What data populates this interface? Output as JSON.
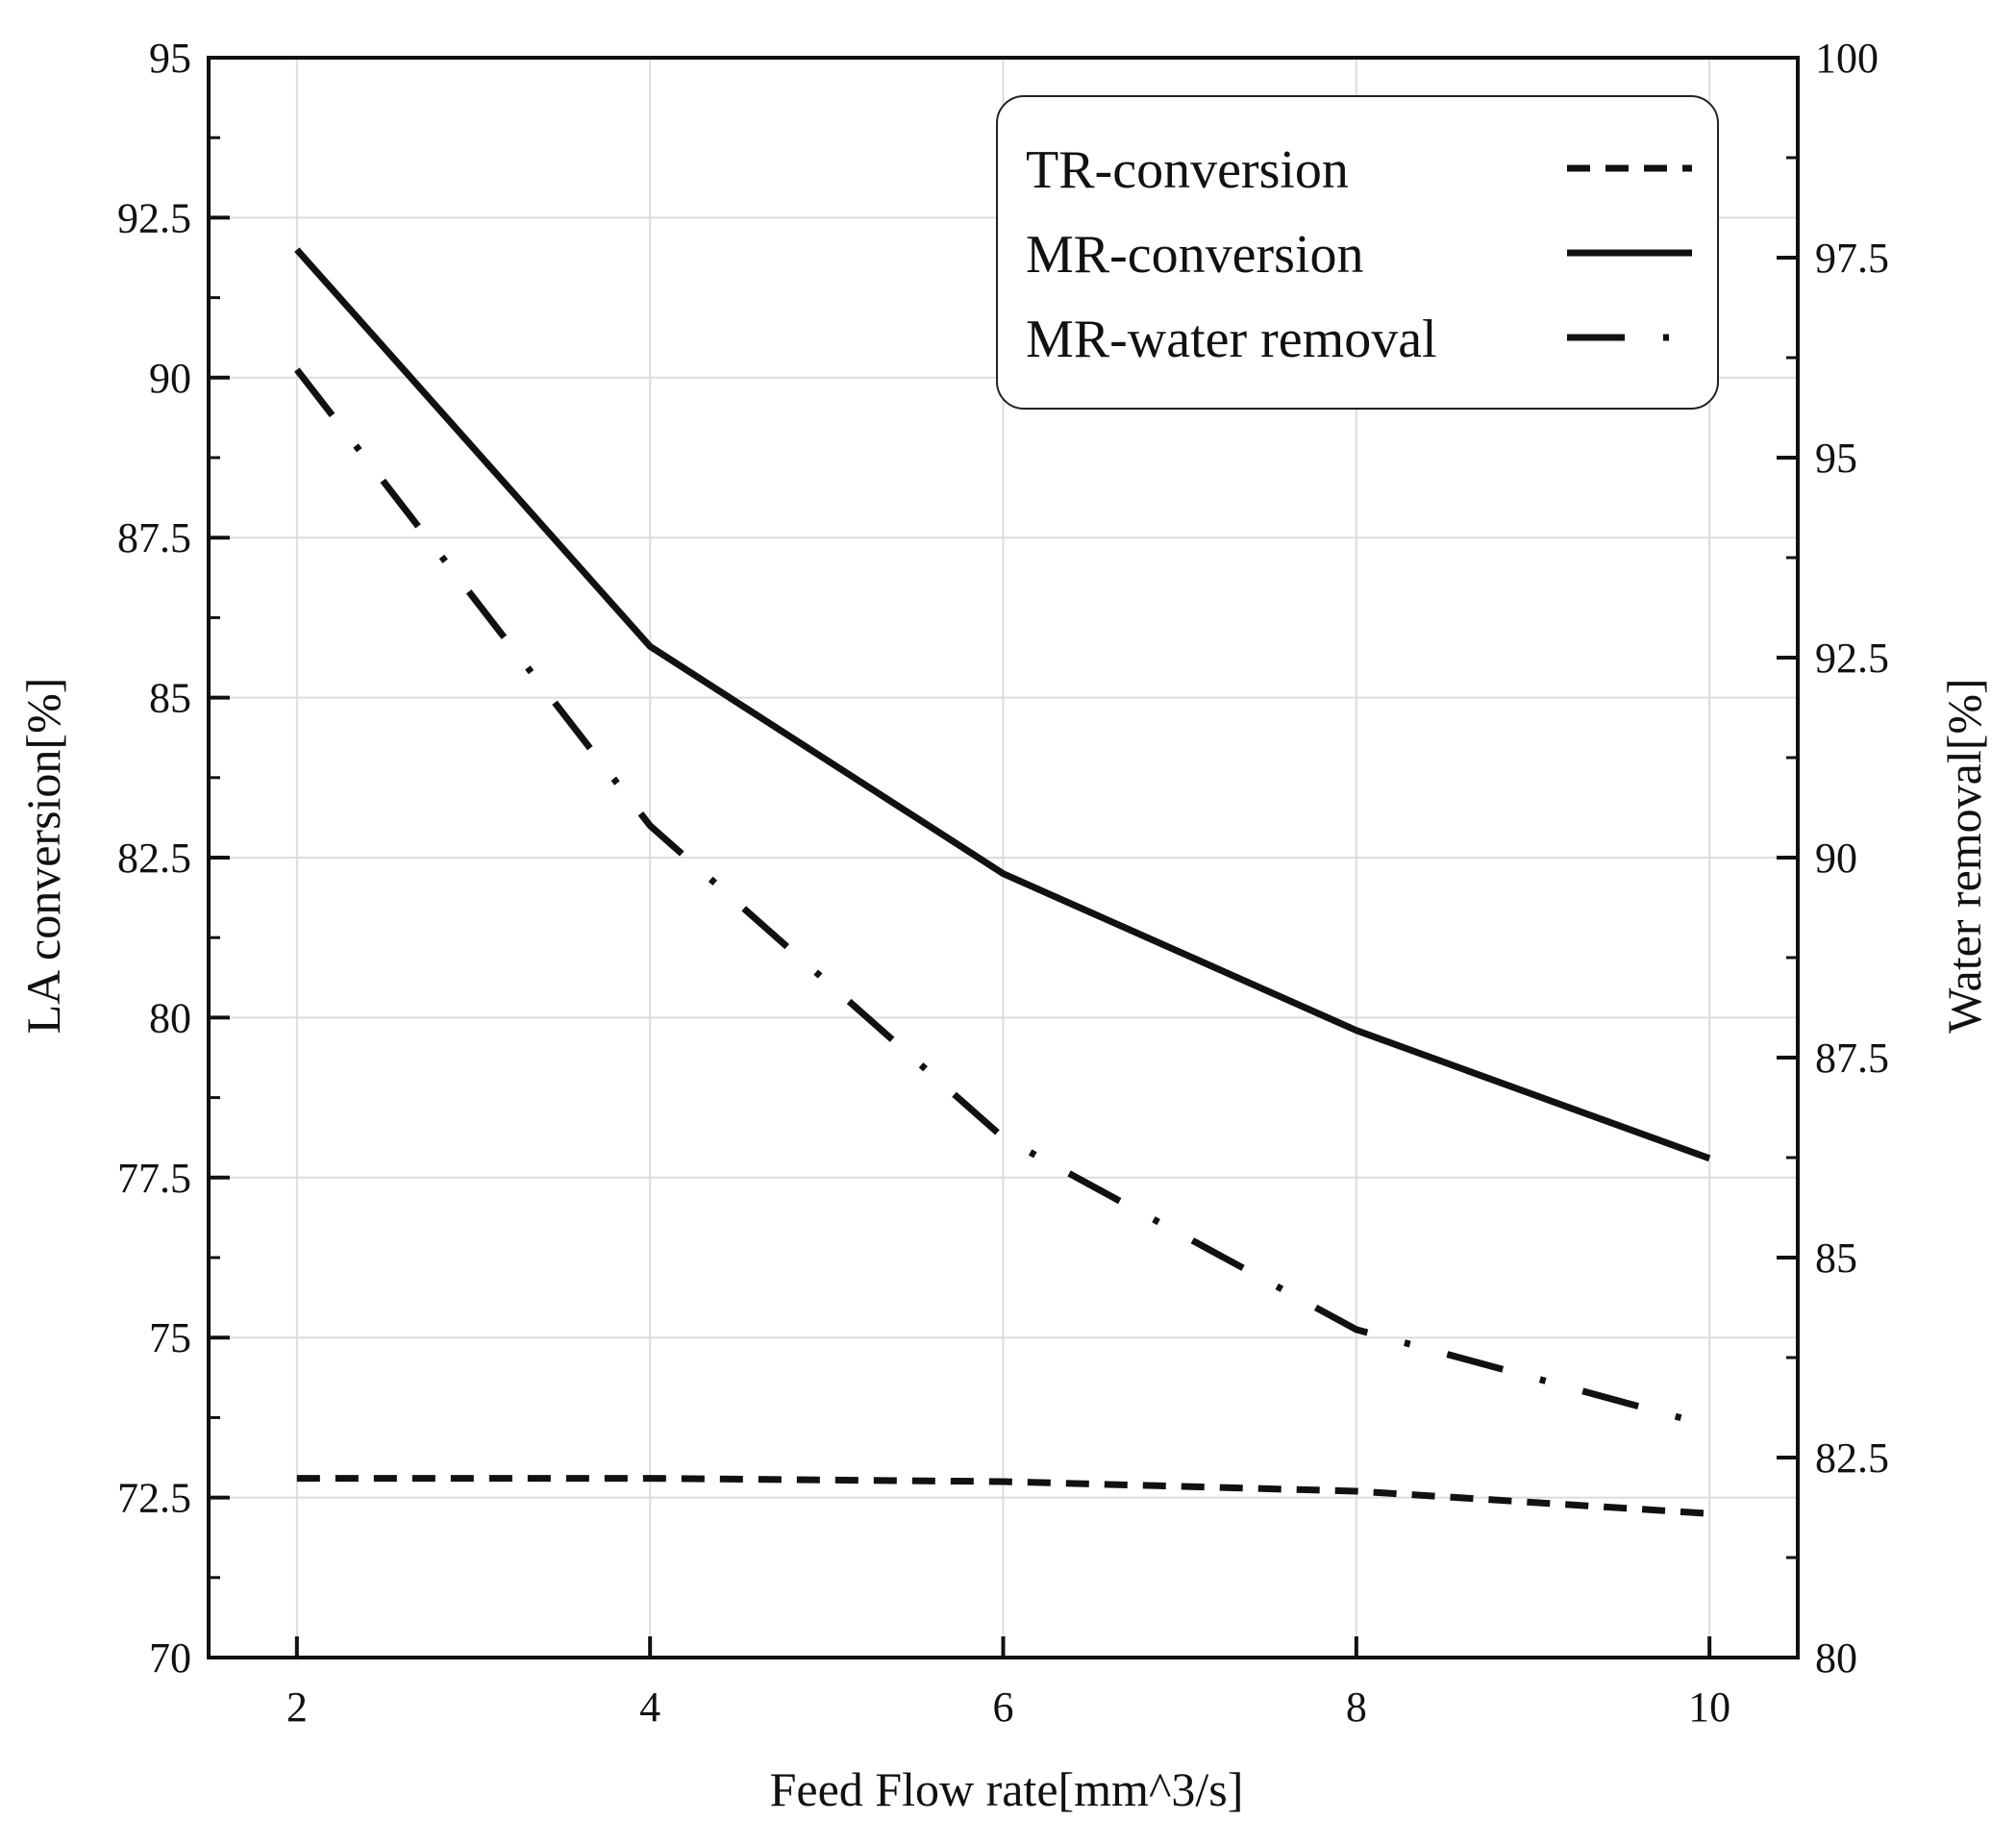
{
  "chart_data": {
    "type": "line",
    "title": "",
    "xlabel": "Feed Flow rate[mm^3/s]",
    "ylabel_left": "LA conversion[%]",
    "ylabel_right": "Water removal[%]",
    "xlim": [
      1.5,
      10.5
    ],
    "ylim_left": [
      70,
      95
    ],
    "ylim_right": [
      80,
      100
    ],
    "x_ticks": [
      "2",
      "4",
      "6",
      "8",
      "10"
    ],
    "y_left_ticks": [
      "70",
      "72.5",
      "75",
      "77.5",
      "80",
      "82.5",
      "85",
      "87.5",
      "90",
      "92.5",
      "95"
    ],
    "y_right_ticks": [
      "80",
      "82.5",
      "85",
      "87.5",
      "90",
      "92.5",
      "95",
      "97.5",
      "100"
    ],
    "grid": true,
    "legend_position": "top-right",
    "series": [
      {
        "name": "TR-conversion",
        "axis": "left",
        "style": "dashed",
        "x": [
          2,
          4,
          6,
          8,
          10
        ],
        "values": [
          72.8,
          72.8,
          72.75,
          72.6,
          72.25
        ]
      },
      {
        "name": "MR-conversion",
        "axis": "left",
        "style": "solid",
        "x": [
          2,
          4,
          6,
          8,
          10
        ],
        "values": [
          92.0,
          85.8,
          82.25,
          79.8,
          77.8
        ]
      },
      {
        "name": "MR-water removal",
        "axis": "right",
        "style": "dash-dot",
        "x": [
          2,
          4,
          6,
          8,
          10
        ],
        "values": [
          96.1,
          90.4,
          86.5,
          84.1,
          82.9
        ]
      }
    ]
  }
}
